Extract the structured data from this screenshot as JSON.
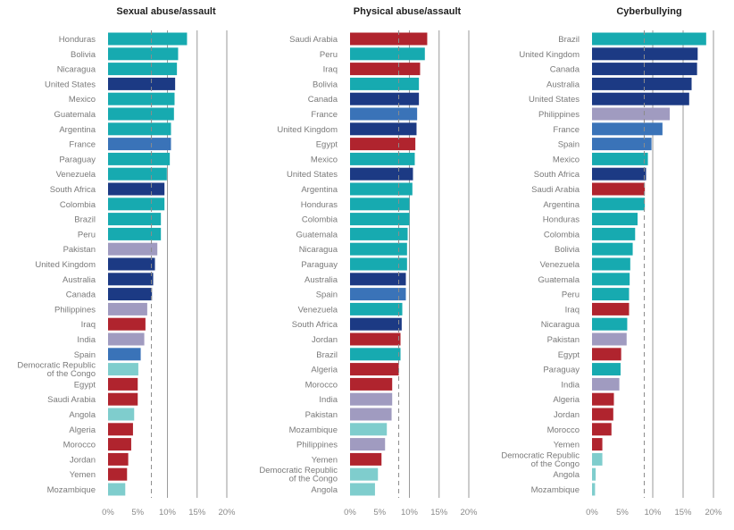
{
  "colors": {
    "background": "#ffffff",
    "teal": "#17aab0",
    "navy": "#1c3a84",
    "blue": "#3a73b8",
    "red": "#b0242e",
    "lavender": "#a09bc0",
    "lightteal": "#7fcdcd"
  },
  "chart_data": [
    {
      "type": "bar",
      "orientation": "horizontal",
      "title": "Sexual abuse/assault",
      "xlim": [
        0,
        20
      ],
      "xticks": [
        "0%",
        "5%",
        "10%",
        "15%",
        "20%"
      ],
      "reference_line": 7.3,
      "categories": [
        "Honduras",
        "Bolivia",
        "Nicaragua",
        "United States",
        "Mexico",
        "Guatemala",
        "Argentina",
        "France",
        "Paraguay",
        "Venezuela",
        "South Africa",
        "Colombia",
        "Brazil",
        "Peru",
        "Pakistan",
        "United Kingdom",
        "Australia",
        "Canada",
        "Philippines",
        "Iraq",
        "India",
        "Spain",
        "Democratic Republic\nof the Congo",
        "Egypt",
        "Saudi Arabia",
        "Angola",
        "Algeria",
        "Morocco",
        "Jordan",
        "Yemen",
        "Mozambique"
      ],
      "values": [
        13.3,
        11.8,
        11.6,
        11.3,
        11.2,
        11.1,
        10.6,
        10.6,
        10.4,
        9.9,
        9.5,
        9.5,
        8.9,
        8.9,
        8.3,
        7.9,
        7.6,
        7.4,
        6.6,
        6.3,
        6.1,
        5.5,
        5.1,
        5.0,
        5.0,
        4.4,
        4.2,
        3.9,
        3.4,
        3.2,
        2.9
      ],
      "color_groups": [
        "teal",
        "teal",
        "teal",
        "navy",
        "teal",
        "teal",
        "teal",
        "blue",
        "teal",
        "teal",
        "navy",
        "teal",
        "teal",
        "teal",
        "lavender",
        "navy",
        "navy",
        "navy",
        "lavender",
        "red",
        "lavender",
        "blue",
        "lightteal",
        "red",
        "red",
        "lightteal",
        "red",
        "red",
        "red",
        "red",
        "lightteal"
      ]
    },
    {
      "type": "bar",
      "orientation": "horizontal",
      "title": "Physical abuse/assault",
      "xlim": [
        0,
        20
      ],
      "xticks": [
        "0%",
        "5%",
        "10%",
        "15%",
        "20%"
      ],
      "reference_line": 8.2,
      "categories": [
        "Saudi Arabia",
        "Peru",
        "Iraq",
        "Bolivia",
        "Canada",
        "France",
        "United Kingdom",
        "Egypt",
        "Mexico",
        "United States",
        "Argentina",
        "Honduras",
        "Colombia",
        "Guatemala",
        "Nicaragua",
        "Paraguay",
        "Australia",
        "Spain",
        "Venezuela",
        "South Africa",
        "Jordan",
        "Brazil",
        "Algeria",
        "Morocco",
        "India",
        "Pakistan",
        "Mozambique",
        "Philippines",
        "Yemen",
        "Democratic Republic\nof the Congo",
        "Angola"
      ],
      "values": [
        13.0,
        12.6,
        11.8,
        11.6,
        11.6,
        11.3,
        11.2,
        11.0,
        10.9,
        10.6,
        10.5,
        10.0,
        10.0,
        9.7,
        9.6,
        9.6,
        9.4,
        9.4,
        8.8,
        8.7,
        8.5,
        8.5,
        8.2,
        7.1,
        7.1,
        7.0,
        6.2,
        5.9,
        5.3,
        4.7,
        4.2
      ],
      "color_groups": [
        "red",
        "teal",
        "red",
        "teal",
        "navy",
        "blue",
        "navy",
        "red",
        "teal",
        "navy",
        "teal",
        "teal",
        "teal",
        "teal",
        "teal",
        "teal",
        "navy",
        "blue",
        "teal",
        "navy",
        "red",
        "teal",
        "red",
        "red",
        "lavender",
        "lavender",
        "lightteal",
        "lavender",
        "red",
        "lightteal",
        "lightteal"
      ]
    },
    {
      "type": "bar",
      "orientation": "horizontal",
      "title": "Cyberbullying",
      "xlim": [
        0,
        20
      ],
      "xticks": [
        "0%",
        "5%",
        "10%",
        "15%",
        "20%"
      ],
      "reference_line": 8.6,
      "categories": [
        "Brazil",
        "United Kingdom",
        "Canada",
        "Australia",
        "United States",
        "Philippines",
        "France",
        "Spain",
        "Mexico",
        "South Africa",
        "Saudi Arabia",
        "Argentina",
        "Honduras",
        "Colombia",
        "Bolivia",
        "Venezuela",
        "Guatemala",
        "Peru",
        "Iraq",
        "Nicaragua",
        "Pakistan",
        "Egypt",
        "Paraguay",
        "India",
        "Algeria",
        "Jordan",
        "Morocco",
        "Yemen",
        "Democratic Republic\nof the Congo",
        "Angola",
        "Mozambique"
      ],
      "values": [
        18.8,
        17.4,
        17.3,
        16.4,
        16.0,
        12.8,
        11.6,
        9.8,
        9.2,
        8.9,
        8.7,
        8.7,
        7.5,
        7.1,
        6.7,
        6.3,
        6.2,
        6.1,
        6.1,
        5.8,
        5.7,
        4.8,
        4.7,
        4.5,
        3.6,
        3.5,
        3.2,
        1.7,
        1.7,
        0.6,
        0.5
      ],
      "color_groups": [
        "teal",
        "navy",
        "navy",
        "navy",
        "navy",
        "lavender",
        "blue",
        "blue",
        "teal",
        "navy",
        "red",
        "teal",
        "teal",
        "teal",
        "teal",
        "teal",
        "teal",
        "teal",
        "red",
        "teal",
        "lavender",
        "red",
        "teal",
        "lavender",
        "red",
        "red",
        "red",
        "red",
        "lightteal",
        "lightteal",
        "lightteal"
      ]
    }
  ]
}
